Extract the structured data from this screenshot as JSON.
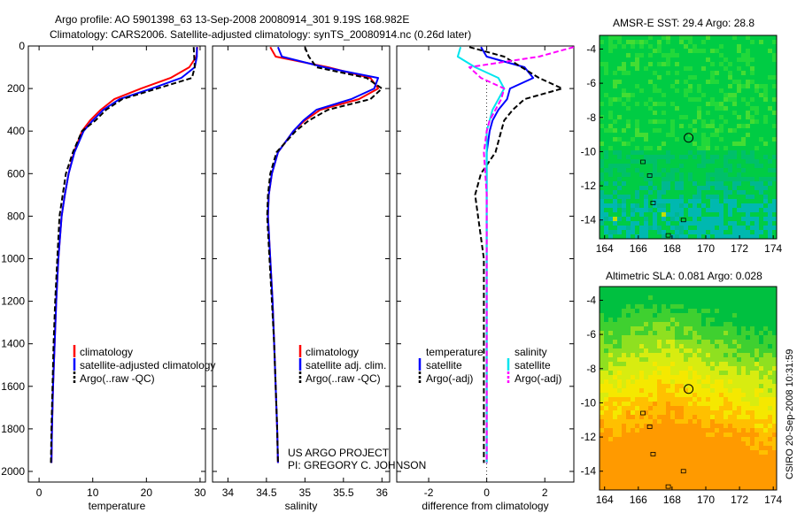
{
  "header": {
    "line1": "Argo profile: AO 5901398_63 13-Sep-2008 20080914_301 9.19S 168.982E",
    "line2": "Climatology: CARS2006. Satellite-adjusted climatology: synTS_20080914.nc (0.26d later)"
  },
  "side_label": "CSIRO 20-Sep-2008 10:31:59",
  "project_note": {
    "line1": "US ARGO PROJECT",
    "line2": "PI: GREGORY C. JOHNSON"
  },
  "colors": {
    "climatology": "#ff0000",
    "satellite": "#0000ff",
    "argo": "#000000",
    "salinity_satellite": "#00e5ee",
    "salinity_argo": "#ff00ff"
  },
  "chart_data": [
    {
      "type": "line",
      "id": "temperature",
      "xlabel": "temperature",
      "ylabel": "",
      "xlim": [
        -2,
        31
      ],
      "ylim": [
        2050,
        0
      ],
      "xticks": [
        0,
        10,
        20,
        30
      ],
      "yticks": [
        0,
        200,
        400,
        600,
        800,
        1000,
        1200,
        1400,
        1600,
        1800,
        2000
      ],
      "legend": [
        "climatology",
        "satellite-adjusted climatology",
        "Argo(..raw -QC)"
      ],
      "series": [
        {
          "name": "climatology",
          "style": "solid",
          "color": "#ff0000",
          "x": [
            29.5,
            29.3,
            28.0,
            24.5,
            19.0,
            14.0,
            11.5,
            9.5,
            8.0,
            6.5,
            5.5,
            4.8,
            4.2,
            3.6,
            3.2,
            2.9,
            2.6,
            2.4,
            2.3
          ],
          "y": [
            5,
            50,
            100,
            150,
            200,
            250,
            300,
            350,
            400,
            500,
            600,
            700,
            800,
            1000,
            1200,
            1400,
            1600,
            1800,
            1960
          ]
        },
        {
          "name": "satellite-adjusted climatology",
          "style": "solid",
          "color": "#0000ff",
          "x": [
            29.4,
            29.4,
            29.0,
            26.5,
            21.0,
            15.0,
            12.0,
            10.0,
            8.3,
            6.6,
            5.5,
            4.8,
            4.2,
            3.6,
            3.2,
            2.9,
            2.6,
            2.4,
            2.3
          ],
          "y": [
            5,
            50,
            100,
            150,
            200,
            250,
            300,
            350,
            400,
            500,
            600,
            700,
            800,
            1000,
            1200,
            1400,
            1600,
            1800,
            1960
          ]
        },
        {
          "name": "Argo(..raw -QC)",
          "style": "dashed",
          "color": "#000000",
          "x": [
            28.8,
            28.9,
            29.0,
            28.5,
            22.0,
            15.5,
            12.5,
            10.5,
            8.0,
            6.3,
            5.0,
            4.4,
            3.8,
            3.4,
            3.0,
            2.7,
            2.5,
            2.3,
            2.2
          ],
          "y": [
            5,
            50,
            100,
            150,
            200,
            250,
            300,
            350,
            400,
            500,
            600,
            700,
            800,
            1000,
            1200,
            1400,
            1600,
            1800,
            1960
          ]
        }
      ]
    },
    {
      "type": "line",
      "id": "salinity",
      "xlabel": "salinity",
      "ylabel": "",
      "xlim": [
        33.8,
        36.1
      ],
      "ylim": [
        2050,
        0
      ],
      "xticks": [
        34,
        34.5,
        35,
        35.5,
        36
      ],
      "legend": [
        "climatology",
        "satellite adj. clim.",
        "Argo(..raw -QC)"
      ],
      "series": [
        {
          "name": "climatology",
          "style": "solid",
          "color": "#ff0000",
          "x": [
            34.55,
            34.62,
            35.3,
            35.85,
            35.95,
            35.7,
            35.2,
            35.0,
            34.85,
            34.65,
            34.57,
            34.53,
            34.52,
            34.55,
            34.58,
            34.6,
            34.62,
            34.64,
            34.65
          ],
          "y": [
            5,
            50,
            100,
            150,
            200,
            250,
            300,
            350,
            400,
            500,
            600,
            700,
            800,
            1000,
            1200,
            1400,
            1600,
            1800,
            1960
          ]
        },
        {
          "name": "satellite adj. clim.",
          "style": "solid",
          "color": "#0000ff",
          "x": [
            34.65,
            34.7,
            35.25,
            35.95,
            35.9,
            35.6,
            35.15,
            34.98,
            34.85,
            34.65,
            34.57,
            34.53,
            34.52,
            34.55,
            34.58,
            34.6,
            34.62,
            34.64,
            34.65
          ],
          "y": [
            5,
            50,
            100,
            150,
            200,
            250,
            300,
            350,
            400,
            500,
            600,
            700,
            800,
            1000,
            1200,
            1400,
            1600,
            1800,
            1960
          ]
        },
        {
          "name": "Argo(..raw -QC)",
          "style": "dashed",
          "color": "#000000",
          "x": [
            35.0,
            35.05,
            35.15,
            35.8,
            36.0,
            35.85,
            35.3,
            35.05,
            34.88,
            34.63,
            34.55,
            34.52,
            34.51,
            34.54,
            34.57,
            34.6,
            34.62,
            34.64,
            34.65
          ],
          "y": [
            5,
            50,
            100,
            150,
            200,
            250,
            300,
            350,
            400,
            500,
            600,
            700,
            800,
            1000,
            1200,
            1400,
            1600,
            1800,
            1960
          ]
        }
      ]
    },
    {
      "type": "line",
      "id": "difference",
      "xlabel": "difference from climatology",
      "ylabel": "",
      "xlim": [
        -3.1,
        3.0
      ],
      "ylim": [
        2050,
        0
      ],
      "xticks": [
        -2,
        0,
        2
      ],
      "legend_groups": [
        {
          "title": "temperature",
          "items": [
            "satellite",
            "Argo(-adj)"
          ]
        },
        {
          "title": "salinity",
          "items": [
            "satellite",
            "Argo(-adj)"
          ]
        }
      ],
      "series": [
        {
          "name": "temperature satellite",
          "style": "solid",
          "color": "#0000ff",
          "x": [
            -0.2,
            0.0,
            1.3,
            1.6,
            0.8,
            0.7,
            0.4,
            0.2,
            0.1,
            0.0,
            0.0,
            0.0,
            0.0,
            0.0,
            0.0,
            0.0,
            0.0,
            0.0
          ],
          "y": [
            5,
            50,
            100,
            150,
            200,
            250,
            300,
            350,
            400,
            500,
            600,
            700,
            800,
            1000,
            1200,
            1400,
            1600,
            1960
          ]
        },
        {
          "name": "temperature Argo(-adj)",
          "style": "dashed",
          "color": "#000000",
          "x": [
            -0.6,
            0.6,
            1.2,
            1.8,
            2.6,
            1.3,
            0.9,
            0.6,
            0.5,
            0.3,
            -0.2,
            -0.4,
            -0.3,
            -0.1,
            -0.1,
            -0.1,
            -0.1,
            -0.1
          ],
          "y": [
            5,
            50,
            100,
            150,
            200,
            250,
            300,
            350,
            400,
            500,
            600,
            700,
            800,
            1000,
            1200,
            1400,
            1600,
            1960
          ]
        },
        {
          "name": "salinity satellite",
          "style": "solid",
          "color": "#00e5ee",
          "x": [
            -0.9,
            -1.0,
            -0.4,
            0.4,
            0.6,
            0.4,
            0.2,
            0.1,
            0.0,
            0.0,
            0.0,
            0.0,
            0.0,
            0.0,
            0.0,
            0.0,
            0.0,
            0.0
          ],
          "y": [
            5,
            50,
            100,
            150,
            200,
            250,
            300,
            350,
            400,
            500,
            600,
            700,
            800,
            1000,
            1200,
            1400,
            1600,
            1960
          ]
        },
        {
          "name": "salinity Argo(-adj)",
          "style": "dashed",
          "color": "#ff00ff",
          "x": [
            3.2,
            1.8,
            -0.6,
            -0.2,
            0.6,
            0.5,
            0.3,
            0.1,
            0.0,
            -0.1,
            -0.05,
            0.0,
            0.0,
            0.0,
            0.0,
            0.0,
            0.0,
            0.0
          ],
          "y": [
            5,
            50,
            100,
            150,
            200,
            250,
            300,
            350,
            400,
            500,
            600,
            700,
            800,
            1000,
            1200,
            1400,
            1600,
            1960
          ]
        }
      ]
    },
    {
      "type": "heatmap",
      "id": "sst_map",
      "title": "AMSR-E SST: 29.4 Argo: 28.8",
      "xlim": [
        163.7,
        174.2
      ],
      "ylim": [
        -15.1,
        -3.2
      ],
      "xticks": [
        164,
        166,
        168,
        170,
        172,
        174
      ],
      "yticks": [
        -4,
        -6,
        -8,
        -10,
        -12,
        -14
      ],
      "marker": {
        "lon": 168.98,
        "lat": -9.19
      },
      "palette": [
        "#00cc44",
        "#22d83a",
        "#44dd33",
        "#00c06a",
        "#00b890",
        "#00b8b0",
        "#bfe000"
      ]
    },
    {
      "type": "heatmap",
      "id": "sla_map",
      "title": "Altimetric SLA: 0.081 Argo: 0.028",
      "xlim": [
        163.7,
        174.2
      ],
      "ylim": [
        -15.1,
        -3.2
      ],
      "xticks": [
        164,
        166,
        168,
        170,
        172,
        174
      ],
      "yticks": [
        -4,
        -6,
        -8,
        -10,
        -12,
        -14
      ],
      "marker": {
        "lon": 168.98,
        "lat": -9.19
      },
      "palette": [
        "#00c040",
        "#3fd030",
        "#8fe020",
        "#d8ec10",
        "#f5e800",
        "#ffc000",
        "#ff9a00"
      ]
    }
  ]
}
